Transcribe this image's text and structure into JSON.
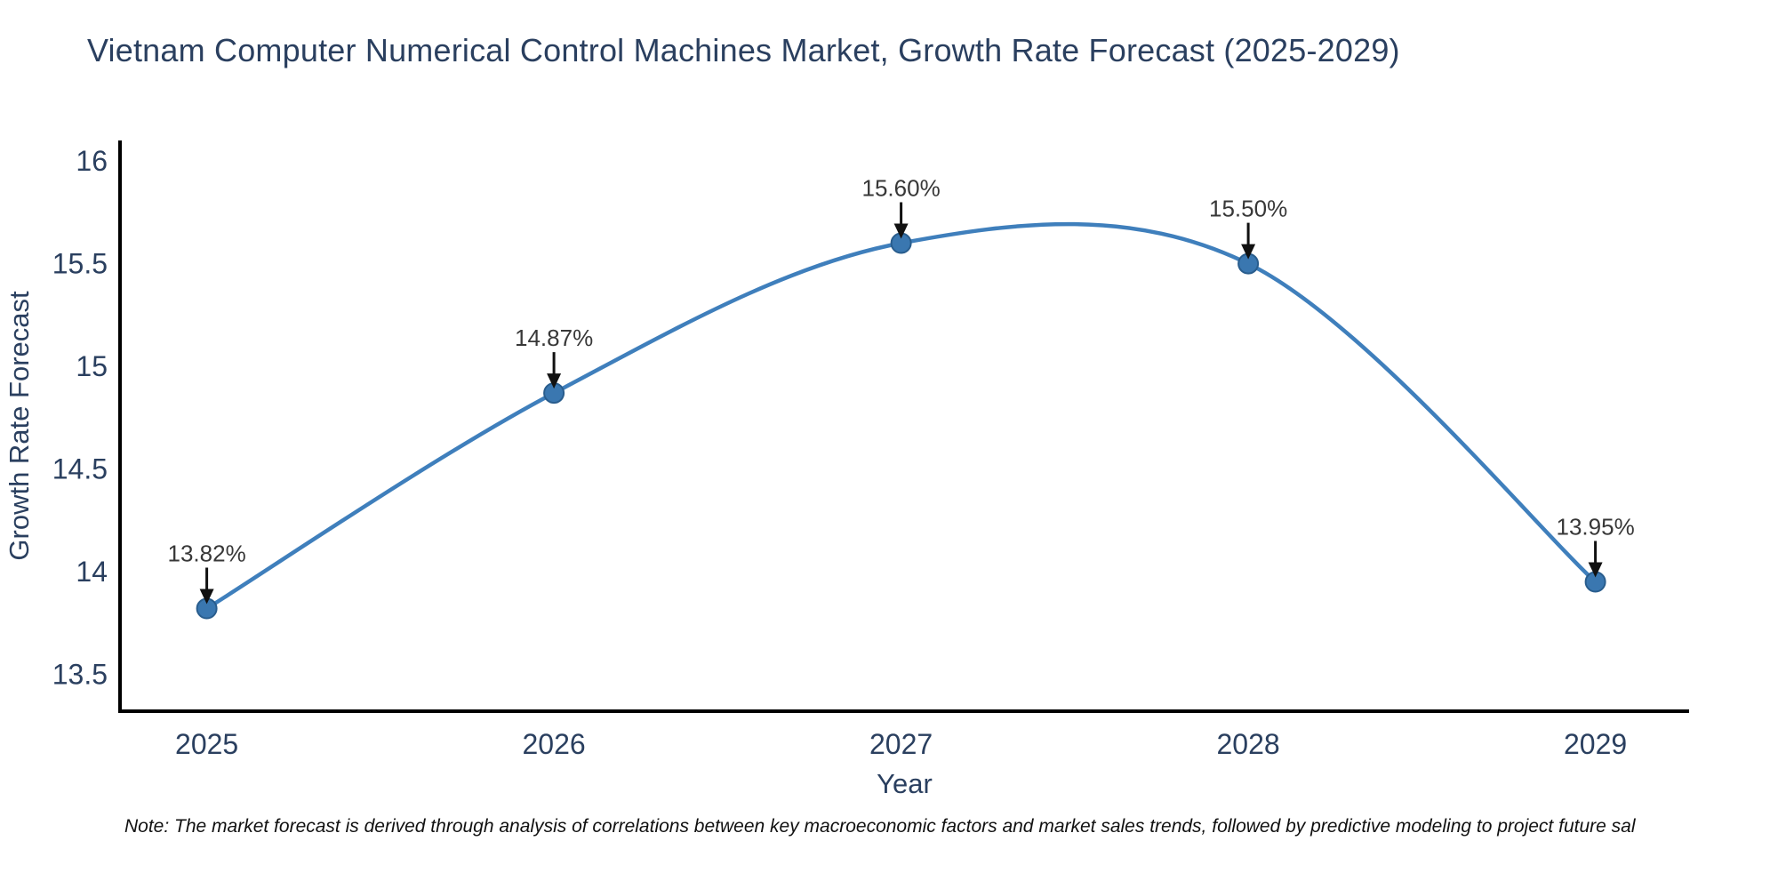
{
  "chart_data": {
    "type": "line",
    "title": "Vietnam Computer Numerical Control Machines Market, Growth Rate Forecast (2025-2029)",
    "x": [
      2025,
      2026,
      2027,
      2028,
      2029
    ],
    "y": [
      13.82,
      14.87,
      15.6,
      15.5,
      13.95
    ],
    "series": [
      {
        "name": "Growth Rate Forecast",
        "values": [
          13.82,
          14.87,
          15.6,
          15.5,
          13.95
        ]
      }
    ],
    "point_labels": [
      "13.82%",
      "14.87%",
      "15.60%",
      "15.50%",
      "13.95%"
    ],
    "xlabel": "Year",
    "ylabel": "Growth Rate Forecast",
    "xlim": [
      2024.75,
      2029.27
    ],
    "ylim": [
      13.32,
      16.1
    ],
    "xticks": [
      2025,
      2026,
      2027,
      2028,
      2029
    ],
    "xtick_labels": [
      "2025",
      "2026",
      "2027",
      "2028",
      "2029"
    ],
    "yticks": [
      13.5,
      14,
      14.5,
      15,
      15.5,
      16
    ],
    "ytick_labels": [
      "13.5",
      "14",
      "14.5",
      "15",
      "15.5",
      "16"
    ],
    "line_shape": "spline",
    "grid": false,
    "legend_position": "none",
    "marker_radius": 11,
    "colors": {
      "line": "#3f7fbc",
      "marker_fill": "#3a77b0",
      "marker_edge": "#295d8d",
      "axis": "#000000",
      "title_text": "#2a3f5f",
      "tick_text": "#2a3f5f",
      "axis_title_text": "#2a3f5f",
      "annotation_text": "#383838",
      "arrow": "#111111",
      "note_text": "#111111",
      "background": "#ffffff"
    }
  },
  "note": "Note: The market forecast is derived through analysis of correlations between key macroeconomic factors and market sales trends, followed by predictive modeling to project future sal"
}
